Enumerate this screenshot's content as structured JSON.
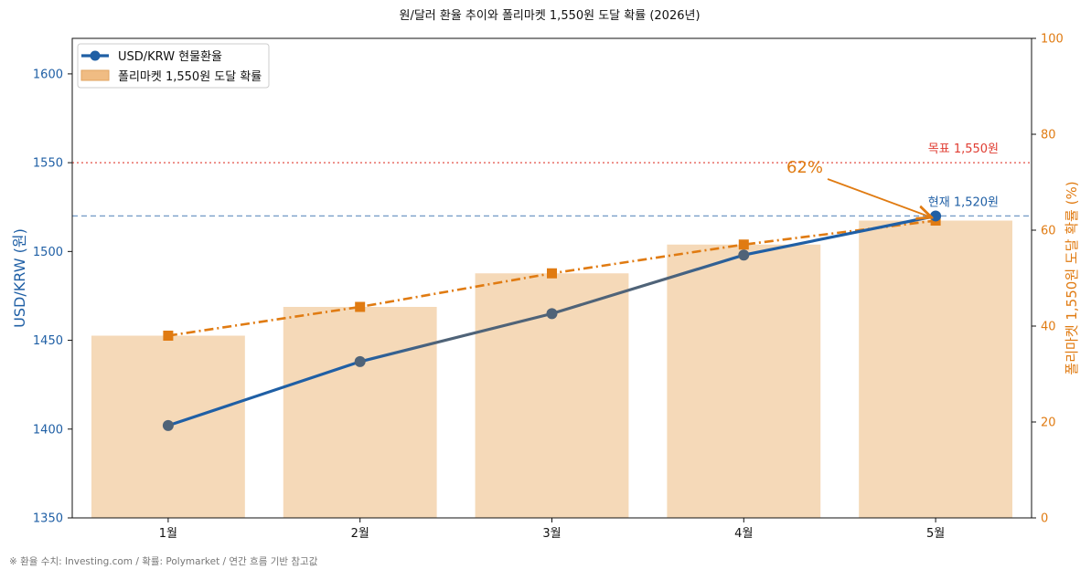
{
  "chart_data": {
    "type": "bar",
    "title": "원/달러 환율 추이와 폴리마켓 1,550원 도달 확률 (2026년)",
    "categories": [
      "1월",
      "2월",
      "3월",
      "4월",
      "5월"
    ],
    "series": [
      {
        "name": "USD/KRW 현물환율",
        "kind": "line",
        "axis": "left",
        "values": [
          1402,
          1438,
          1465,
          1498,
          1520
        ],
        "color": "#1f5fa5"
      },
      {
        "name": "폴리마켓 1,550원 도달 확률",
        "kind": "bar",
        "axis": "right",
        "values": [
          38,
          44,
          51,
          57,
          62
        ],
        "color": "#f5d9b8"
      },
      {
        "name": "",
        "kind": "line-dashdot",
        "axis": "right",
        "values": [
          38,
          44,
          51,
          57,
          62
        ],
        "color": "#e07b12"
      }
    ],
    "ylabel": "USD/KRW (원)",
    "y2label": "폴리마켓 1,550원 도달 확률 (%)",
    "ylim": [
      1350,
      1620
    ],
    "y2lim": [
      0,
      100
    ],
    "yticks": [
      1350,
      1400,
      1450,
      1500,
      1550,
      1600
    ],
    "y2ticks": [
      0,
      20,
      40,
      60,
      80,
      100
    ],
    "reference_lines": [
      {
        "value": 1550,
        "label": "목표 1,550원",
        "style": "dotted",
        "color": "#e03c31"
      },
      {
        "value": 1520,
        "label": "현재 1,520원",
        "style": "dashed",
        "color": "#1f5fa5"
      }
    ],
    "annotation": {
      "text": "62%",
      "category_index": 4,
      "value": 62,
      "color": "#e07b12"
    },
    "legend": {
      "placement": "top-left"
    },
    "grid": false,
    "footnote": "※ 환율 수치: Investing.com  /  확률: Polymarket  /  연간 흐름 기반 참고값"
  }
}
